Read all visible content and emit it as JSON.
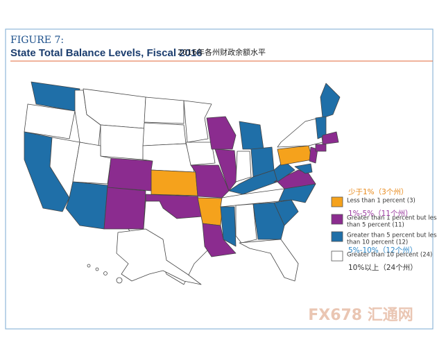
{
  "header": {
    "figure": "FIGURE 7:",
    "title": "State Total Balance Levels, Fiscal 2016",
    "subtitle": "2016年各州财政余额水平"
  },
  "legend": [
    {
      "note": "少于1%（3个州）",
      "lines": [
        "Less than 1 percent (3)"
      ],
      "color": "#f5a21c",
      "note_color": "#e8891a"
    },
    {
      "note": "1%-5%（11个州）",
      "lines": [
        "Greater than 1 percent but less",
        "than 5 percent (11)"
      ],
      "color": "#8b2c8f",
      "note_color": "#9b3aa0"
    },
    {
      "note": "5%-10%（12个州）",
      "lines": [
        "Greater than 5 percent but less",
        "than 10 percent (12)"
      ],
      "color": "#1f6fa8",
      "note_color": "#2a86c8"
    },
    {
      "note": "10%以上（24个州）",
      "lines": [
        "Greater than 10 percent (24)"
      ],
      "color": "#ffffff",
      "note_color": "#333333"
    }
  ],
  "watermark": "FX678 汇通网"
}
